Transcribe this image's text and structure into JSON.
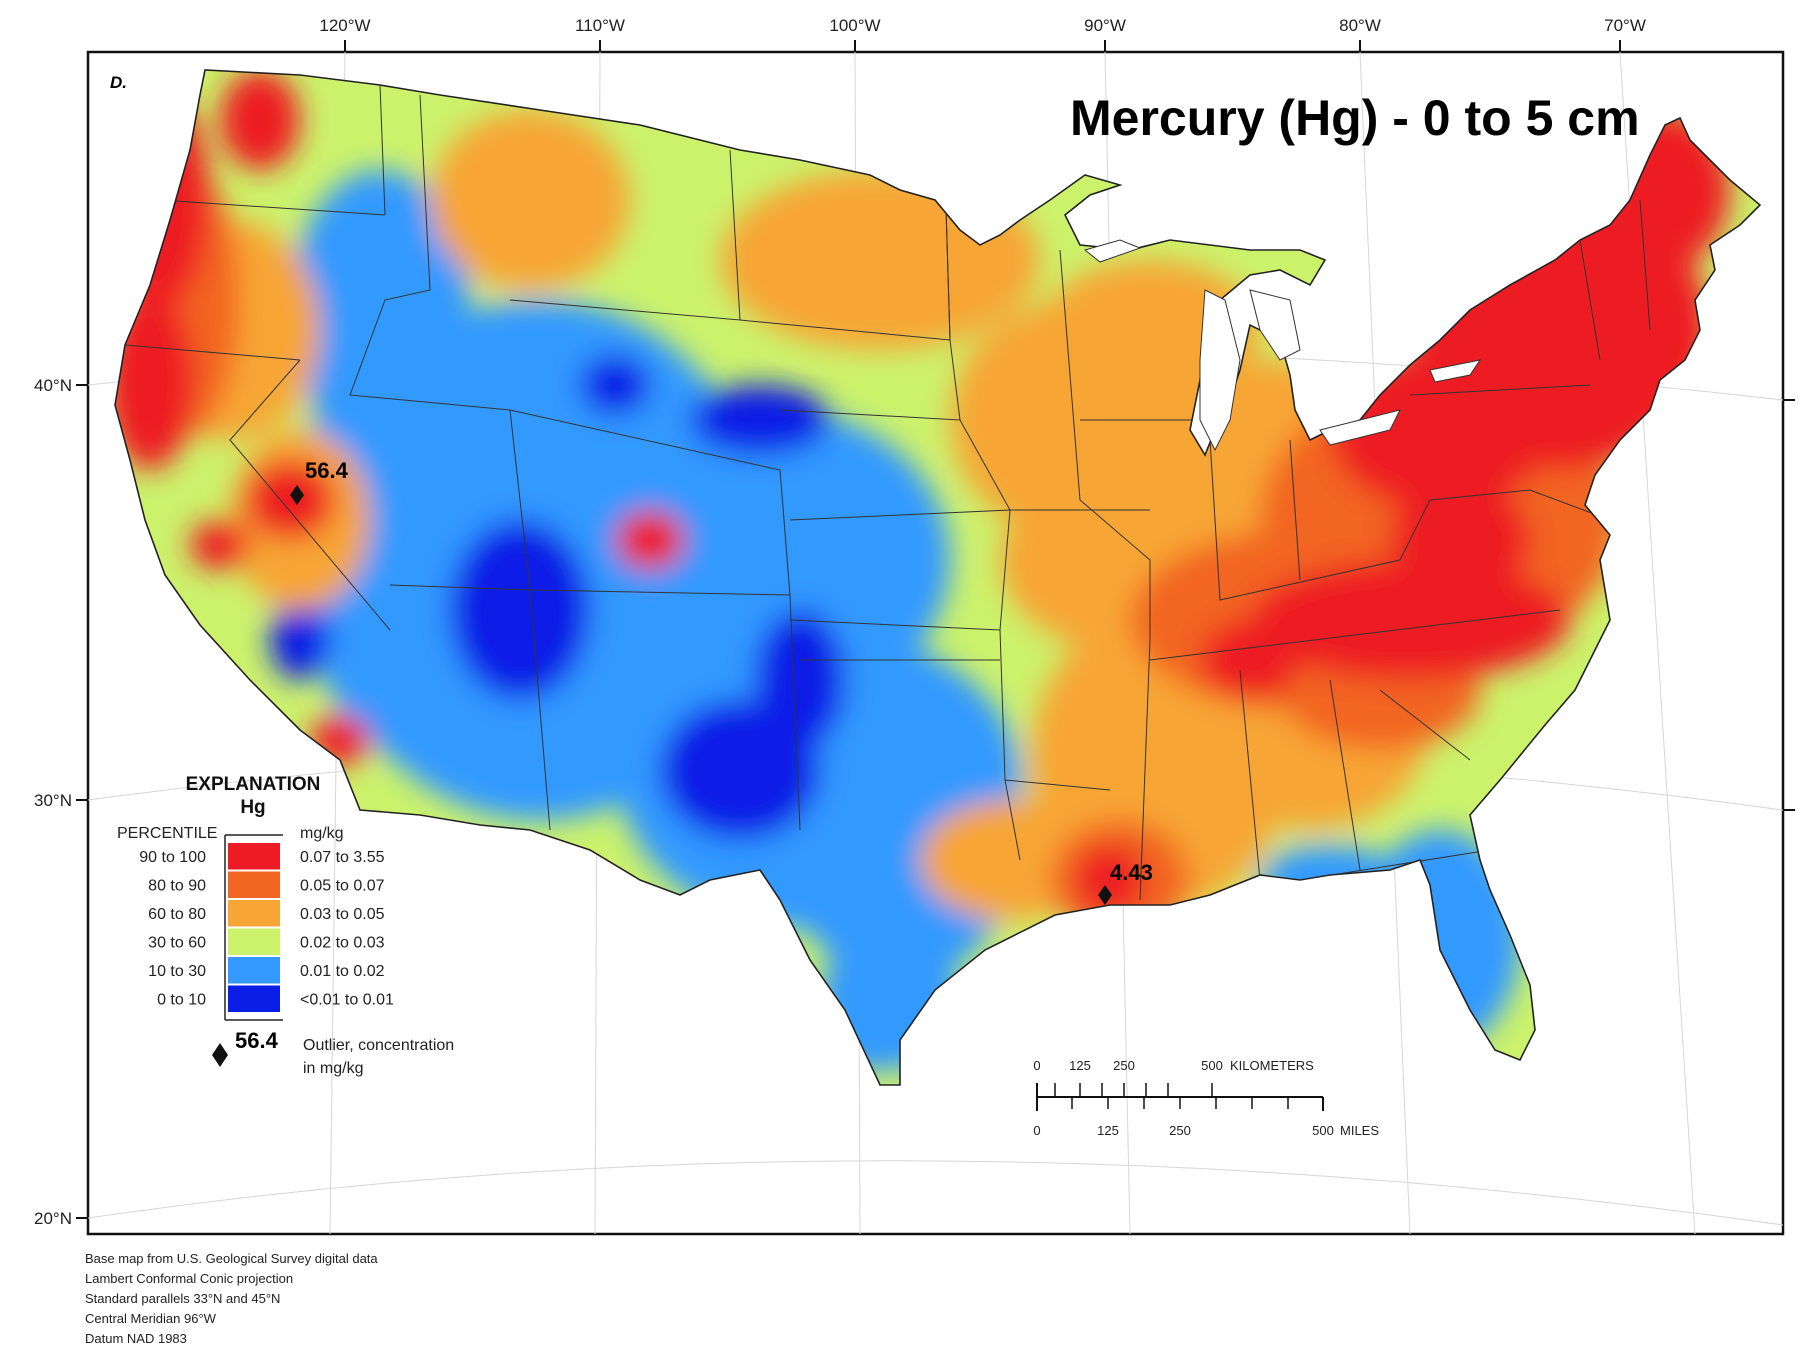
{
  "map": {
    "panel_letter": "D.",
    "title": "Mercury (Hg) - 0 to 5 cm",
    "longitude_labels": [
      "120°W",
      "110°W",
      "100°W",
      "90°W",
      "80°W",
      "70°W"
    ],
    "latitude_labels": [
      "40°N",
      "30°N",
      "20°N"
    ],
    "outliers": [
      {
        "value": "56.4",
        "location": "Nevada"
      },
      {
        "value": "4.43",
        "location": "Louisiana"
      }
    ]
  },
  "legend": {
    "title": "EXPLANATION",
    "subtitle": "Hg",
    "percentile_header": "PERCENTILE",
    "unit_header": "mg/kg",
    "classes": [
      {
        "percentile": "90 to 100",
        "range": "0.07 to 3.55",
        "color": "#ed1c24"
      },
      {
        "percentile": "80 to 90",
        "range": "0.05 to 0.07",
        "color": "#f26522"
      },
      {
        "percentile": "60 to 80",
        "range": "0.03 to 0.05",
        "color": "#f7a635"
      },
      {
        "percentile": "30 to 60",
        "range": "0.02 to 0.03",
        "color": "#ccf26c"
      },
      {
        "percentile": "10 to 30",
        "range": "0.01 to 0.02",
        "color": "#3399ff"
      },
      {
        "percentile": "0 to 10",
        "range": "<0.01 to 0.01",
        "color": "#0a1ee6"
      }
    ],
    "outlier_symbol_value": "56.4",
    "outlier_line1": "Outlier, concentration",
    "outlier_line2": "in mg/kg"
  },
  "scale_bar": {
    "km_labels": [
      "0",
      "125",
      "250",
      "500"
    ],
    "km_unit": "KILOMETERS",
    "mile_labels": [
      "0",
      "125",
      "250",
      "500"
    ],
    "mile_unit": "MILES"
  },
  "credits": [
    "Base map from U.S. Geological Survey digital data",
    "Lambert Conformal Conic projection",
    "Standard parallels 33°N and 45°N",
    "Central Meridian 96°W",
    "Datum NAD 1983"
  ]
}
